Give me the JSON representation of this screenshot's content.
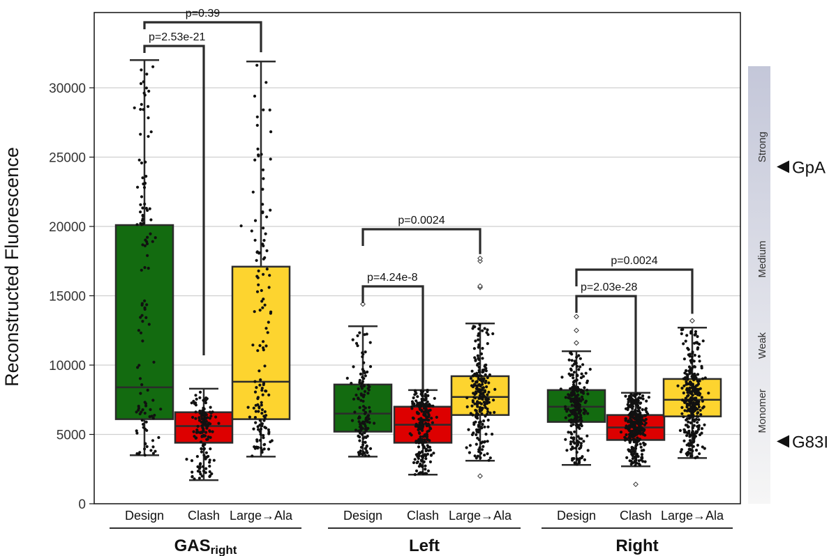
{
  "colors": {
    "design": "#136b10",
    "clash": "#dd0000",
    "large_to_ala": "#fdd42f",
    "box_edge": "#2b2b2b",
    "grid": "#cfcfcf",
    "band_top": "#c4c7d9",
    "band_bottom": "#f6f6f6"
  },
  "chart_data": {
    "type": "box",
    "ylabel": "Reconstructed Fluorescence",
    "ylim": [
      0,
      32000
    ],
    "yticks": [
      0,
      5000,
      10000,
      15000,
      20000,
      25000,
      30000
    ],
    "grid": true,
    "categories": [
      "Design",
      "Clash",
      "Large→Ala"
    ],
    "groups": [
      {
        "name": "GAS",
        "subscript": "right",
        "boxes": [
          {
            "category": "Design",
            "whisker_low": 3500,
            "q1": 6100,
            "median": 8400,
            "q3": 20100,
            "whisker_high": 32000,
            "outliers": []
          },
          {
            "category": "Clash",
            "whisker_low": 1700,
            "q1": 4400,
            "median": 5600,
            "q3": 6600,
            "whisker_high": 8300,
            "outliers": []
          },
          {
            "category": "Large→Ala",
            "whisker_low": 3400,
            "q1": 6100,
            "median": 8800,
            "q3": 17100,
            "whisker_high": 31900,
            "outliers": []
          }
        ],
        "comparisons": [
          {
            "between": [
              "Design",
              "Clash"
            ],
            "label": "p=2.53e-21"
          },
          {
            "between": [
              "Design",
              "Large→Ala"
            ],
            "label": "p=0.39"
          }
        ]
      },
      {
        "name": "Left",
        "subscript": "",
        "boxes": [
          {
            "category": "Design",
            "whisker_low": 3400,
            "q1": 5200,
            "median": 6500,
            "q3": 8600,
            "whisker_high": 12800,
            "outliers": [
              14400
            ]
          },
          {
            "category": "Clash",
            "whisker_low": 2100,
            "q1": 4400,
            "median": 5700,
            "q3": 7000,
            "whisker_high": 8200,
            "outliers": []
          },
          {
            "category": "Large→Ala",
            "whisker_low": 3100,
            "q1": 6400,
            "median": 7700,
            "q3": 9200,
            "whisker_high": 13000,
            "outliers": [
              15600,
              15700,
              17500,
              17700,
              2000
            ]
          }
        ],
        "comparisons": [
          {
            "between": [
              "Design",
              "Clash"
            ],
            "label": "p=4.24e-8"
          },
          {
            "between": [
              "Design",
              "Large→Ala"
            ],
            "label": "p=0.0024"
          }
        ]
      },
      {
        "name": "Right",
        "subscript": "",
        "boxes": [
          {
            "category": "Design",
            "whisker_low": 2800,
            "q1": 5900,
            "median": 7000,
            "q3": 8200,
            "whisker_high": 11000,
            "outliers": [
              11600,
              12500,
              13500
            ]
          },
          {
            "category": "Clash",
            "whisker_low": 2700,
            "q1": 4600,
            "median": 5500,
            "q3": 6400,
            "whisker_high": 8000,
            "outliers": [
              1400
            ]
          },
          {
            "category": "Large→Ala",
            "whisker_low": 3300,
            "q1": 6300,
            "median": 7500,
            "q3": 9000,
            "whisker_high": 12700,
            "outliers": [
              13200
            ]
          }
        ],
        "comparisons": [
          {
            "between": [
              "Design",
              "Clash"
            ],
            "label": "p=2.03e-28"
          },
          {
            "between": [
              "Design",
              "Large→Ala"
            ],
            "label": "p=0.0024"
          }
        ]
      }
    ],
    "bands": [
      "Monomer",
      "Weak",
      "Medium",
      "Strong"
    ],
    "markers": [
      {
        "label": "GpA",
        "value": 24300
      },
      {
        "label": "G83I",
        "value": 4500
      }
    ]
  }
}
